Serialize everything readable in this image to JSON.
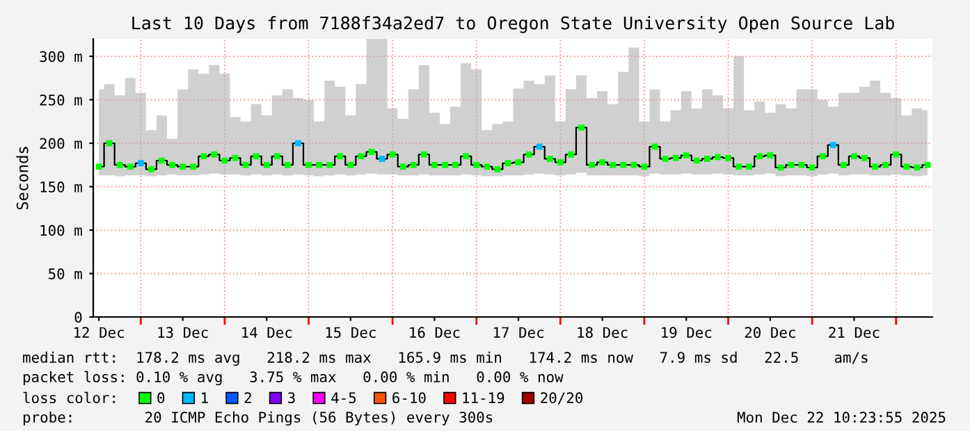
{
  "chart_data": {
    "type": "step",
    "title": "Last 10 Days from 7188f34a2ed7 to Oregon State University Open Source Lab",
    "ylabel": "Seconds",
    "legend_title": "loss color:",
    "legend": "bottom",
    "grid": true,
    "ylim": [
      0,
      320
    ],
    "yticks": [
      0,
      {
        "value": 50,
        "label": "50 m"
      },
      {
        "value": 100,
        "label": "100 m"
      },
      {
        "value": 150,
        "label": "150 m"
      },
      {
        "value": 200,
        "label": "200 m"
      },
      {
        "value": 250,
        "label": "250 m"
      },
      {
        "value": 300,
        "label": "300 m"
      }
    ],
    "xlim": [
      "2025-12-12T10:24",
      "2025-12-22T10:24"
    ],
    "xticks": [
      {
        "value": "2025-12-12T12:00",
        "label": "12 Dec"
      },
      {
        "value": "2025-12-13T00:00",
        "label": null
      },
      {
        "value": "2025-12-13T12:00",
        "label": "13 Dec"
      },
      {
        "value": "2025-12-14T00:00",
        "label": null
      },
      {
        "value": "2025-12-14T12:00",
        "label": "14 Dec"
      },
      {
        "value": "2025-12-15T00:00",
        "label": null
      },
      {
        "value": "2025-12-15T12:00",
        "label": "15 Dec"
      },
      {
        "value": "2025-12-16T00:00",
        "label": null
      },
      {
        "value": "2025-12-16T12:00",
        "label": "16 Dec"
      },
      {
        "value": "2025-12-17T00:00",
        "label": null
      },
      {
        "value": "2025-12-17T12:00",
        "label": "17 Dec"
      },
      {
        "value": "2025-12-18T00:00",
        "label": null
      },
      {
        "value": "2025-12-18T12:00",
        "label": "18 Dec"
      },
      {
        "value": "2025-12-19T00:00",
        "label": null
      },
      {
        "value": "2025-12-19T12:00",
        "label": "19 Dec"
      },
      {
        "value": "2025-12-20T00:00",
        "label": null
      },
      {
        "value": "2025-12-20T12:00",
        "label": "20 Dec"
      },
      {
        "value": "2025-12-21T00:00",
        "label": null
      },
      {
        "value": "2025-12-21T12:00",
        "label": "21 Dec"
      },
      {
        "value": "2025-12-22T00:00",
        "label": null
      }
    ],
    "x": [
      "2025-12-12T12:00",
      "2025-12-12T15:00",
      "2025-12-12T18:00",
      "2025-12-12T21:00",
      "2025-12-13T00:00",
      "2025-12-13T03:00",
      "2025-12-13T06:00",
      "2025-12-13T09:00",
      "2025-12-13T12:00",
      "2025-12-13T15:00",
      "2025-12-13T18:00",
      "2025-12-13T21:00",
      "2025-12-14T00:00",
      "2025-12-14T03:00",
      "2025-12-14T06:00",
      "2025-12-14T09:00",
      "2025-12-14T12:00",
      "2025-12-14T15:00",
      "2025-12-14T18:00",
      "2025-12-14T21:00",
      "2025-12-15T00:00",
      "2025-12-15T03:00",
      "2025-12-15T06:00",
      "2025-12-15T09:00",
      "2025-12-15T12:00",
      "2025-12-15T15:00",
      "2025-12-15T18:00",
      "2025-12-15T21:00",
      "2025-12-16T00:00",
      "2025-12-16T03:00",
      "2025-12-16T06:00",
      "2025-12-16T09:00",
      "2025-12-16T12:00",
      "2025-12-16T15:00",
      "2025-12-16T18:00",
      "2025-12-16T21:00",
      "2025-12-17T00:00",
      "2025-12-17T03:00",
      "2025-12-17T06:00",
      "2025-12-17T09:00",
      "2025-12-17T12:00",
      "2025-12-17T15:00",
      "2025-12-17T18:00",
      "2025-12-17T21:00",
      "2025-12-18T00:00",
      "2025-12-18T03:00",
      "2025-12-18T06:00",
      "2025-12-18T09:00",
      "2025-12-18T12:00",
      "2025-12-18T15:00",
      "2025-12-18T18:00",
      "2025-12-18T21:00",
      "2025-12-19T00:00",
      "2025-12-19T03:00",
      "2025-12-19T06:00",
      "2025-12-19T09:00",
      "2025-12-19T12:00",
      "2025-12-19T15:00",
      "2025-12-19T18:00",
      "2025-12-19T21:00",
      "2025-12-20T00:00",
      "2025-12-20T03:00",
      "2025-12-20T06:00",
      "2025-12-20T09:00",
      "2025-12-20T12:00",
      "2025-12-20T15:00",
      "2025-12-20T18:00",
      "2025-12-20T21:00",
      "2025-12-21T00:00",
      "2025-12-21T03:00",
      "2025-12-21T06:00",
      "2025-12-21T09:00",
      "2025-12-21T12:00",
      "2025-12-21T15:00",
      "2025-12-21T18:00",
      "2025-12-21T21:00",
      "2025-12-22T00:00",
      "2025-12-22T03:00",
      "2025-12-22T06:00",
      "2025-12-22T09:00"
    ],
    "series": [
      {
        "color": "#000000",
        "values": [
          173,
          200,
          175,
          173,
          177,
          170,
          180,
          175,
          173,
          173,
          185,
          187,
          180,
          183,
          175,
          185,
          175,
          185,
          175,
          200,
          175,
          175,
          175,
          185,
          175,
          185,
          190,
          182,
          187,
          173,
          175,
          187,
          175,
          175,
          175,
          185,
          175,
          173,
          170,
          177,
          178,
          187,
          196,
          182,
          178,
          187,
          218,
          175,
          178,
          175,
          175,
          175,
          173,
          196,
          182,
          183,
          186,
          180,
          182,
          184,
          183,
          173,
          173,
          185,
          186,
          172,
          175,
          175,
          172,
          185,
          198,
          175,
          185,
          183,
          173,
          175,
          187,
          173,
          172,
          175
        ],
        "lower": [
          163,
          163,
          162,
          163,
          163,
          162,
          163,
          164,
          163,
          163,
          164,
          165,
          164,
          164,
          163,
          164,
          163,
          164,
          163,
          164,
          163,
          162,
          163,
          164,
          163,
          164,
          165,
          164,
          164,
          163,
          163,
          164,
          163,
          163,
          163,
          164,
          163,
          162,
          162,
          163,
          163,
          164,
          165,
          164,
          163,
          164,
          166,
          163,
          163,
          163,
          163,
          163,
          162,
          165,
          164,
          164,
          165,
          164,
          164,
          165,
          164,
          163,
          163,
          164,
          165,
          162,
          163,
          163,
          162,
          164,
          165,
          163,
          164,
          164,
          163,
          163,
          164,
          163,
          162,
          163
        ],
        "upper": [
          262,
          268,
          255,
          275,
          258,
          215,
          232,
          205,
          262,
          285,
          280,
          290,
          280,
          230,
          225,
          245,
          232,
          255,
          262,
          252,
          250,
          225,
          272,
          265,
          232,
          268,
          320,
          320,
          240,
          228,
          262,
          290,
          235,
          222,
          242,
          292,
          285,
          215,
          222,
          225,
          263,
          272,
          268,
          278,
          225,
          262,
          278,
          252,
          260,
          245,
          282,
          310,
          225,
          262,
          225,
          238,
          260,
          240,
          262,
          255,
          240,
          300,
          238,
          248,
          235,
          245,
          240,
          262,
          262,
          250,
          242,
          258,
          258,
          265,
          272,
          258,
          252,
          232,
          240,
          238
        ]
      },
      {
        "type": "scatter",
        "name": "0",
        "color": "#00ff00",
        "marker": "square",
        "values": [
          173,
          200,
          175,
          173,
          null,
          170,
          180,
          175,
          173,
          173,
          185,
          187,
          180,
          183,
          175,
          185,
          175,
          185,
          175,
          null,
          175,
          175,
          175,
          185,
          175,
          185,
          190,
          null,
          187,
          173,
          175,
          187,
          175,
          175,
          175,
          185,
          175,
          173,
          170,
          177,
          178,
          187,
          null,
          182,
          178,
          187,
          218,
          175,
          178,
          175,
          175,
          175,
          173,
          196,
          182,
          183,
          186,
          180,
          182,
          184,
          183,
          173,
          173,
          185,
          186,
          172,
          175,
          175,
          172,
          185,
          null,
          175,
          185,
          183,
          173,
          175,
          187,
          173,
          172,
          175
        ]
      },
      {
        "type": "scatter",
        "name": "1",
        "color": "#00b8ff",
        "marker": "square",
        "values": [
          null,
          null,
          null,
          null,
          177,
          null,
          null,
          null,
          null,
          null,
          null,
          null,
          null,
          null,
          null,
          null,
          null,
          null,
          null,
          200,
          null,
          null,
          null,
          null,
          null,
          null,
          null,
          182,
          null,
          null,
          null,
          null,
          null,
          null,
          null,
          null,
          null,
          null,
          null,
          null,
          null,
          null,
          196,
          null,
          null,
          null,
          null,
          null,
          null,
          null,
          null,
          null,
          null,
          null,
          null,
          null,
          null,
          null,
          null,
          null,
          null,
          null,
          null,
          null,
          null,
          null,
          null,
          null,
          null,
          null,
          198,
          null,
          null,
          null,
          null,
          null,
          null,
          null,
          null,
          null
        ]
      },
      {
        "type": "scatter",
        "name": "2",
        "color": "#0059ff",
        "marker": "square",
        "values": [
          null,
          null,
          null,
          null,
          null,
          null,
          null,
          null,
          null,
          null,
          null,
          null,
          null,
          null,
          null,
          null,
          null,
          null,
          null,
          null,
          null,
          null,
          null,
          null,
          null,
          null,
          null,
          null,
          null,
          null,
          null,
          null,
          null,
          null,
          null,
          null,
          null,
          null,
          null,
          null,
          null,
          null,
          null,
          null,
          null,
          null,
          null,
          null,
          null,
          null,
          null,
          null,
          null,
          null,
          null,
          null,
          null,
          null,
          null,
          null,
          null,
          null,
          null,
          null,
          null,
          null,
          null,
          null,
          null,
          null,
          null,
          null,
          null,
          null,
          null,
          null,
          null,
          null,
          null,
          null
        ]
      },
      {
        "type": "scatter",
        "name": "3",
        "color": "#7e00ff",
        "marker": "square",
        "values": [
          null,
          null,
          null,
          null,
          null,
          null,
          null,
          null,
          null,
          null,
          null,
          null,
          null,
          null,
          null,
          null,
          null,
          null,
          null,
          null,
          null,
          null,
          null,
          null,
          null,
          null,
          null,
          null,
          null,
          null,
          null,
          null,
          null,
          null,
          null,
          null,
          null,
          null,
          null,
          null,
          null,
          null,
          null,
          null,
          null,
          null,
          null,
          null,
          null,
          null,
          null,
          null,
          null,
          null,
          null,
          null,
          null,
          null,
          null,
          null,
          null,
          null,
          null,
          null,
          null,
          null,
          null,
          null,
          null,
          null,
          null,
          null,
          null,
          null,
          null,
          null,
          null,
          null,
          null,
          null
        ]
      },
      {
        "type": "scatter",
        "name": "4-5",
        "color": "#ff00ff",
        "marker": "square",
        "values": [
          null,
          null,
          null,
          null,
          null,
          null,
          null,
          null,
          null,
          null,
          null,
          null,
          null,
          null,
          null,
          null,
          null,
          null,
          null,
          null,
          null,
          null,
          null,
          null,
          null,
          null,
          null,
          null,
          null,
          null,
          null,
          null,
          null,
          null,
          null,
          null,
          null,
          null,
          null,
          null,
          null,
          null,
          null,
          null,
          null,
          null,
          null,
          null,
          null,
          null,
          null,
          null,
          null,
          null,
          null,
          null,
          null,
          null,
          null,
          null,
          null,
          null,
          null,
          null,
          null,
          null,
          null,
          null,
          null,
          null,
          null,
          null,
          null,
          null,
          null,
          null,
          null,
          null,
          null,
          null
        ]
      },
      {
        "type": "scatter",
        "name": "6-10",
        "color": "#ff5500",
        "marker": "square",
        "values": [
          null,
          null,
          null,
          null,
          null,
          null,
          null,
          null,
          null,
          null,
          null,
          null,
          null,
          null,
          null,
          null,
          null,
          null,
          null,
          null,
          null,
          null,
          null,
          null,
          null,
          null,
          null,
          null,
          null,
          null,
          null,
          null,
          null,
          null,
          null,
          null,
          null,
          null,
          null,
          null,
          null,
          null,
          null,
          null,
          null,
          null,
          null,
          null,
          null,
          null,
          null,
          null,
          null,
          null,
          null,
          null,
          null,
          null,
          null,
          null,
          null,
          null,
          null,
          null,
          null,
          null,
          null,
          null,
          null,
          null,
          null,
          null,
          null,
          null,
          null,
          null,
          null,
          null,
          null,
          null
        ]
      },
      {
        "type": "scatter",
        "name": "11-19",
        "color": "#ff0000",
        "marker": "square",
        "values": [
          null,
          null,
          null,
          null,
          null,
          null,
          null,
          null,
          null,
          null,
          null,
          null,
          null,
          null,
          null,
          null,
          null,
          null,
          null,
          null,
          null,
          null,
          null,
          null,
          null,
          null,
          null,
          null,
          null,
          null,
          null,
          null,
          null,
          null,
          null,
          null,
          null,
          null,
          null,
          null,
          null,
          null,
          null,
          null,
          null,
          null,
          null,
          null,
          null,
          null,
          null,
          null,
          null,
          null,
          null,
          null,
          null,
          null,
          null,
          null,
          null,
          null,
          null,
          null,
          null,
          null,
          null,
          null,
          null,
          null,
          null,
          null,
          null,
          null,
          null,
          null,
          null,
          null,
          null,
          null
        ]
      },
      {
        "type": "scatter",
        "name": "20/20",
        "color": "#a10000",
        "marker": "square",
        "values": [
          null,
          null,
          null,
          null,
          null,
          null,
          null,
          null,
          null,
          null,
          null,
          null,
          null,
          null,
          null,
          null,
          null,
          null,
          null,
          null,
          null,
          null,
          null,
          null,
          null,
          null,
          null,
          null,
          null,
          null,
          null,
          null,
          null,
          null,
          null,
          null,
          null,
          null,
          null,
          null,
          null,
          null,
          null,
          null,
          null,
          null,
          null,
          null,
          null,
          null,
          null,
          null,
          null,
          null,
          null,
          null,
          null,
          null,
          null,
          null,
          null,
          null,
          null,
          null,
          null,
          null,
          null,
          null,
          null,
          null,
          null,
          null,
          null,
          null,
          null,
          null,
          null,
          null,
          null,
          null
        ]
      }
    ],
    "annotations": [
      "median rtt:  178.2 ms avg   218.2 ms max   165.9 ms min   174.2 ms now   7.9 ms sd   22.5    am/s",
      "packet loss: 0.10 % avg   3.75 % max   0.00 % min   0.00 % now",
      "probe:        20 ICMP Echo Pings (56 Bytes) every 300s",
      "Mon Dec 22 10:23:55 2025"
    ]
  }
}
